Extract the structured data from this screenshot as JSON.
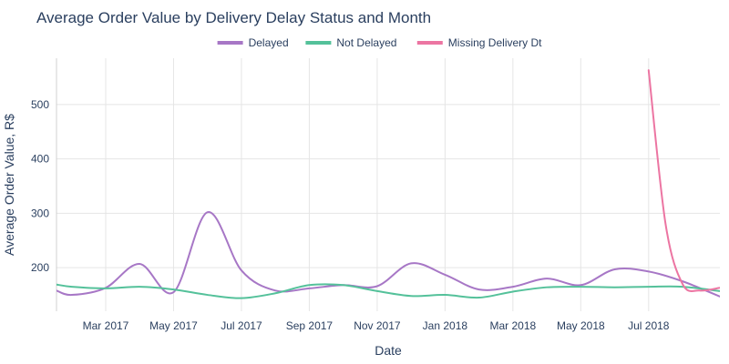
{
  "chart_data": {
    "type": "line",
    "title": "Average Order Value by Delivery Delay Status and Month",
    "xlabel": "Date",
    "ylabel": "Average Order Value, R$",
    "x_tick_labels": [
      "Mar 2017",
      "May 2017",
      "Jul 2017",
      "Sep 2017",
      "Nov 2017",
      "Jan 2018",
      "Mar 2018",
      "May 2018",
      "Jul 2018"
    ],
    "x_tick_months": [
      2,
      4,
      6,
      8,
      10,
      12,
      14,
      16,
      18
    ],
    "x_range_months": [
      0.55,
      20.1
    ],
    "y_ticks": [
      200,
      300,
      400,
      500
    ],
    "y_tick_labels": [
      "200",
      "300",
      "400",
      "500"
    ],
    "ylim": [
      120,
      585
    ],
    "legend_position": "top-center",
    "series": [
      {
        "name": "Delayed",
        "color": "#A777C6",
        "x": [
          0.55,
          1,
          2,
          3,
          4,
          5,
          6,
          7,
          8,
          9,
          10,
          11,
          12,
          13,
          14,
          15,
          16,
          17,
          18,
          19,
          20.1
        ],
        "values": [
          158,
          150,
          163,
          207,
          155,
          302,
          195,
          158,
          162,
          168,
          166,
          208,
          187,
          160,
          165,
          180,
          168,
          197,
          193,
          175,
          147
        ]
      },
      {
        "name": "Not Delayed",
        "color": "#54C19A",
        "x": [
          0.55,
          1,
          2,
          3,
          4,
          5,
          6,
          7,
          8,
          9,
          10,
          11,
          12,
          13,
          14,
          15,
          16,
          17,
          18,
          19,
          20.1
        ],
        "values": [
          169,
          165,
          162,
          165,
          160,
          150,
          144,
          153,
          168,
          168,
          157,
          148,
          150,
          145,
          156,
          164,
          165,
          164,
          165,
          165,
          157
        ]
      },
      {
        "name": "Missing Delivery Dt",
        "color": "#EC75A2",
        "x": [
          18,
          18.5,
          19,
          19.5,
          20.1
        ],
        "values": [
          563,
          280,
          170,
          158,
          163
        ]
      }
    ]
  }
}
